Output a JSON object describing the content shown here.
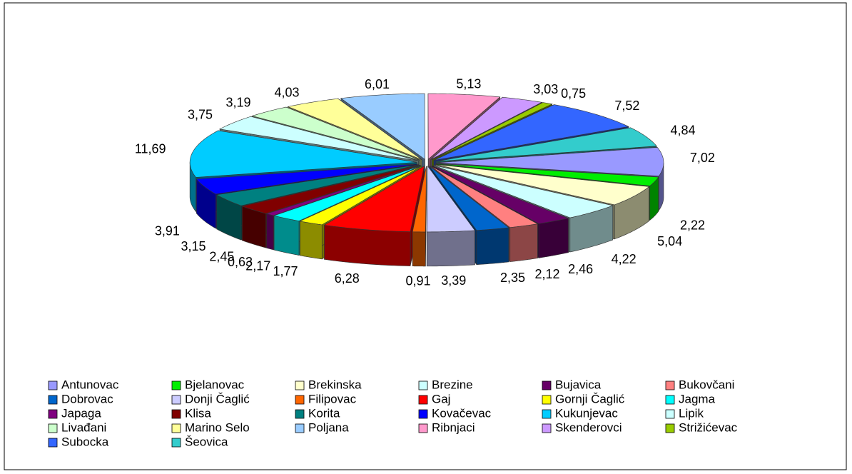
{
  "chart_data": {
    "type": "pie3d",
    "categories": [
      "Antunovac",
      "Bjelanovac",
      "Brekinska",
      "Brezine",
      "Bujavica",
      "Bukovčani",
      "Dobrovac",
      "Donji Čaglić",
      "Filipovac",
      "Gaj",
      "Gornji Čaglić",
      "Jagma",
      "Japaga",
      "Klisa",
      "Korita",
      "Kovačevac",
      "Kukunjevac",
      "Lipik",
      "Livađani",
      "Marino Selo",
      "Poljana",
      "Ribnjaci",
      "Skenderovci",
      "Strižićevac",
      "Subocka",
      "Šeovica"
    ],
    "values": [
      7.02,
      2.22,
      5.04,
      4.22,
      2.46,
      2.12,
      2.35,
      3.39,
      0.91,
      6.28,
      1.77,
      2.17,
      0.63,
      2.45,
      3.15,
      3.91,
      11.69,
      3.75,
      3.19,
      4.03,
      6.01,
      5.13,
      3.03,
      0.75,
      7.52,
      4.84
    ],
    "value_labels": [
      "7,02",
      "2,22",
      "5,04",
      "4,22",
      "2,46",
      "2,12",
      "2,35",
      "3,39",
      "0,91",
      "6,28",
      "1,77",
      "2,17",
      "0,63",
      "2,45",
      "3,15",
      "3,91",
      "11,69",
      "3,75",
      "3,19",
      "4,03",
      "6,01",
      "5,13",
      "3,03",
      "0,75",
      "7,52",
      "4,84"
    ],
    "colors": [
      "#9999ff",
      "#00ee00",
      "#ffffcc",
      "#ccffff",
      "#660066",
      "#ff8080",
      "#0066cc",
      "#ccccff",
      "#ff6600",
      "#ff0000",
      "#ffff00",
      "#00ffff",
      "#800080",
      "#800000",
      "#008080",
      "#0000ff",
      "#00ccff",
      "#ccffff",
      "#ccffcc",
      "#ffff99",
      "#99ccff",
      "#ff99cc",
      "#cc99ff",
      "#99cc00",
      "#3366ff",
      "#33cccc"
    ],
    "legend": "bottom"
  }
}
